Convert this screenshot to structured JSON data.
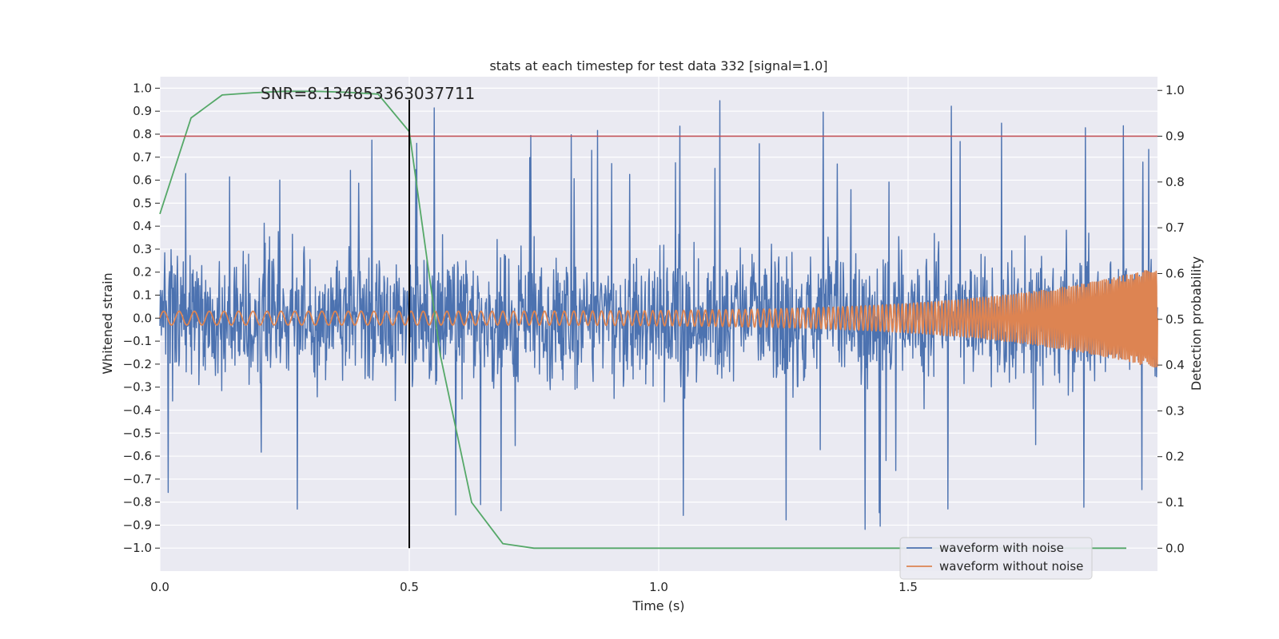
{
  "chart_data": {
    "type": "line",
    "title": "stats at each timestep for test data 332 [signal=1.0]",
    "xlabel": "Time (s)",
    "ylabel": "Whitened strain",
    "ylabel_right": "Detection probability",
    "xlim": [
      0.0,
      2.0
    ],
    "ylim": [
      -1.1,
      1.05
    ],
    "ylim_right": [
      -0.05,
      1.03
    ],
    "x_ticks": [
      0.0,
      0.5,
      1.0,
      1.5
    ],
    "x_tick_labels": [
      "0.0",
      "0.5",
      "1.0",
      "1.5"
    ],
    "y_ticks": [
      1.0,
      0.9,
      0.8,
      0.7,
      0.6,
      0.5,
      0.4,
      0.3,
      0.2,
      0.1,
      0.0,
      -0.1,
      -0.2,
      -0.3,
      -0.4,
      -0.5,
      -0.6,
      -0.7,
      -0.8,
      -0.9,
      -1.0
    ],
    "y_tick_labels": [
      "1.0",
      "0.9",
      "0.8",
      "0.7",
      "0.6",
      "0.5",
      "0.4",
      "0.3",
      "0.2",
      "0.1",
      "0.0",
      "−0.1",
      "−0.2",
      "−0.3",
      "−0.4",
      "−0.5",
      "−0.6",
      "−0.7",
      "−0.8",
      "−0.9",
      "−1.0"
    ],
    "y_right_ticks": [
      1.0,
      0.9,
      0.8,
      0.7,
      0.6,
      0.5,
      0.4,
      0.3,
      0.2,
      0.1,
      0.0
    ],
    "y_right_tick_labels": [
      "1.0",
      "0.9",
      "0.8",
      "0.7",
      "0.6",
      "0.5",
      "0.4",
      "0.3",
      "0.2",
      "0.1",
      "0.0"
    ],
    "grid": true,
    "legend": {
      "placement": "lower-right",
      "entries": [
        {
          "name": "waveform with noise",
          "color": "#4c72b0"
        },
        {
          "name": "waveform without noise",
          "color": "#dd8452"
        }
      ]
    },
    "annotation": {
      "text": "SNR=8.134853363037711",
      "x": 0.2,
      "y": 0.97
    },
    "threshold_line": {
      "axis": "right",
      "y": 0.9,
      "color": "#c44e52"
    },
    "marker_line": {
      "x": 0.5,
      "y_range": [
        -1.0,
        0.95
      ],
      "color": "#000000"
    },
    "series": [
      {
        "name": "waveform with noise",
        "axis": "left",
        "color": "#4c72b0",
        "kind": "noise",
        "x_range": [
          0.0,
          2.0
        ],
        "samples": 2048,
        "amplitude_range": [
          -1.0,
          0.95
        ]
      },
      {
        "name": "waveform without noise",
        "axis": "left",
        "color": "#dd8452",
        "kind": "chirp",
        "x_range": [
          0.0,
          2.0
        ],
        "amplitude_start": 0.03,
        "amplitude_end": 0.22
      },
      {
        "name": "detection probability",
        "axis": "right",
        "color": "#55a868",
        "x": [
          0.0,
          0.0625,
          0.125,
          0.1875,
          0.25,
          0.3125,
          0.375,
          0.4375,
          0.5,
          0.5625,
          0.625,
          0.6875,
          0.75,
          0.8125,
          0.875,
          1.0,
          1.25,
          1.5,
          1.75,
          1.9375
        ],
        "y": [
          0.73,
          0.94,
          0.99,
          0.995,
          0.998,
          0.998,
          0.996,
          0.992,
          0.91,
          0.42,
          0.1,
          0.01,
          0.0,
          0.0,
          0.0,
          0.0,
          0.0,
          0.0,
          0.0,
          0.0
        ]
      }
    ]
  },
  "colors": {
    "plot_background": "#eaeaf2",
    "grid": "#ffffff",
    "text": "#262626"
  }
}
